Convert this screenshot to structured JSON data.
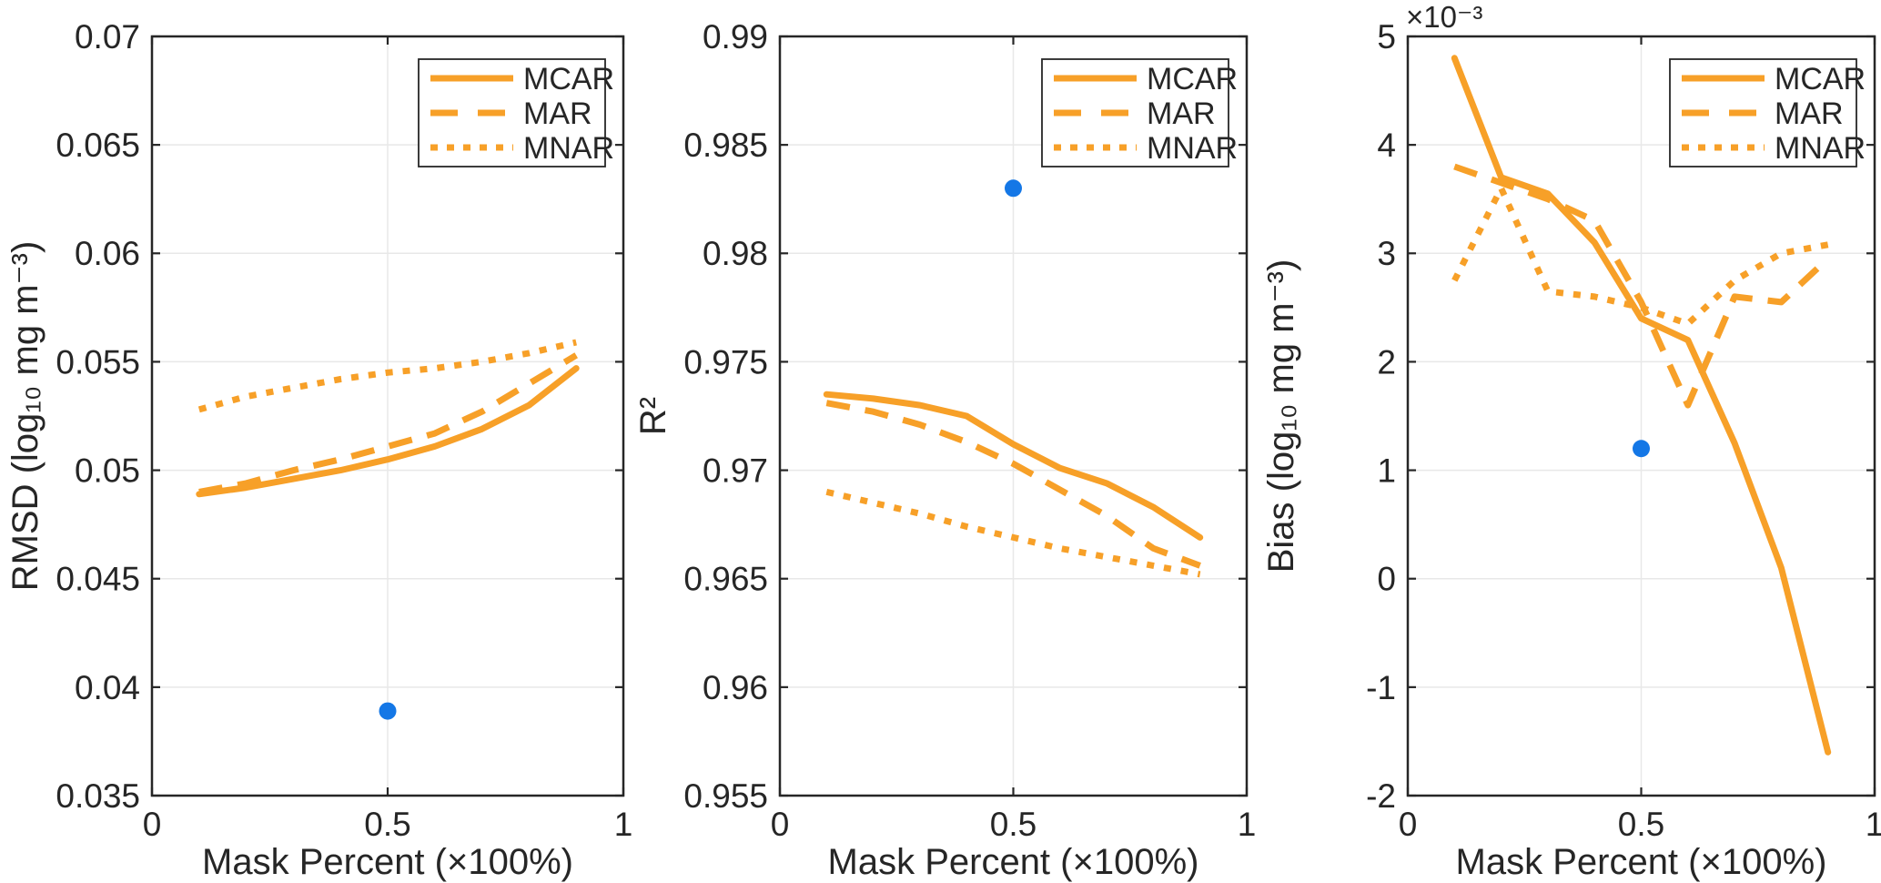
{
  "figure": {
    "background": "#FFFFFF"
  },
  "colors": {
    "series_orange": "#F7A028",
    "point_blue": "#1477E6",
    "grid": "#E8E8E8",
    "axis": "#262626",
    "text": "#262626",
    "legend_border": "#262626",
    "legend_background": "#FFFFFF"
  },
  "legend": {
    "position": "top-right",
    "items": [
      {
        "label": "MCAR",
        "style": "solid"
      },
      {
        "label": "MAR",
        "style": "dashed"
      },
      {
        "label": "MNAR",
        "style": "dotted"
      }
    ]
  },
  "chart_data": [
    {
      "type": "line",
      "title": "",
      "xlabel": "Mask Percent (×100%)",
      "ylabel": "RMSD (log₁₀ mg m⁻³)",
      "y_offset_label": "",
      "xlim": [
        0,
        1
      ],
      "ylim": [
        0.035,
        0.07
      ],
      "xticks": [
        0,
        0.5,
        1
      ],
      "xtick_labels": [
        "0",
        "0.5",
        "1"
      ],
      "yticks": [
        0.035,
        0.04,
        0.045,
        0.05,
        0.055,
        0.06,
        0.065,
        0.07
      ],
      "ytick_labels": [
        "0.035",
        "0.04",
        "0.045",
        "0.05",
        "0.055",
        "0.06",
        "0.065",
        "0.07"
      ],
      "grid": true,
      "legend_position": "top-right",
      "x": [
        0.1,
        0.2,
        0.3,
        0.4,
        0.5,
        0.6,
        0.7,
        0.8,
        0.9
      ],
      "series": [
        {
          "name": "MCAR",
          "style": "solid",
          "values": [
            0.0489,
            0.0492,
            0.0496,
            0.05,
            0.0505,
            0.0511,
            0.0519,
            0.053,
            0.0547
          ]
        },
        {
          "name": "MAR",
          "style": "dashed",
          "values": [
            0.049,
            0.0494,
            0.05,
            0.0505,
            0.0511,
            0.0517,
            0.0527,
            0.054,
            0.0553
          ]
        },
        {
          "name": "MNAR",
          "style": "dotted",
          "values": [
            0.0528,
            0.0534,
            0.0538,
            0.0542,
            0.0545,
            0.0547,
            0.055,
            0.0554,
            0.0559
          ]
        }
      ],
      "point": {
        "x": 0.5,
        "y": 0.0389
      }
    },
    {
      "type": "line",
      "title": "",
      "xlabel": "Mask Percent (×100%)",
      "ylabel": "R²",
      "y_offset_label": "",
      "xlim": [
        0,
        1
      ],
      "ylim": [
        0.955,
        0.99
      ],
      "xticks": [
        0,
        0.5,
        1
      ],
      "xtick_labels": [
        "0",
        "0.5",
        "1"
      ],
      "yticks": [
        0.955,
        0.96,
        0.965,
        0.97,
        0.975,
        0.98,
        0.985,
        0.99
      ],
      "ytick_labels": [
        "0.955",
        "0.96",
        "0.965",
        "0.97",
        "0.975",
        "0.98",
        "0.985",
        "0.99"
      ],
      "grid": true,
      "legend_position": "top-right",
      "x": [
        0.1,
        0.2,
        0.3,
        0.4,
        0.5,
        0.6,
        0.7,
        0.8,
        0.9
      ],
      "series": [
        {
          "name": "MCAR",
          "style": "solid",
          "values": [
            0.9735,
            0.9733,
            0.973,
            0.9725,
            0.9712,
            0.9701,
            0.9694,
            0.9683,
            0.9669
          ]
        },
        {
          "name": "MAR",
          "style": "dashed",
          "values": [
            0.9731,
            0.9727,
            0.9721,
            0.9713,
            0.9703,
            0.9691,
            0.9679,
            0.9664,
            0.9656
          ]
        },
        {
          "name": "MNAR",
          "style": "dotted",
          "values": [
            0.969,
            0.9685,
            0.968,
            0.9674,
            0.9669,
            0.9664,
            0.966,
            0.9656,
            0.9652
          ]
        }
      ],
      "point": {
        "x": 0.5,
        "y": 0.983
      }
    },
    {
      "type": "line",
      "title": "",
      "xlabel": "Mask Percent (×100%)",
      "ylabel": "Bias (log₁₀ mg m⁻³)",
      "y_offset_label": "×10⁻³",
      "xlim": [
        0,
        1
      ],
      "ylim": [
        -2,
        5
      ],
      "xticks": [
        0,
        0.5,
        1
      ],
      "xtick_labels": [
        "0",
        "0.5",
        "1"
      ],
      "yticks": [
        -2,
        -1,
        0,
        1,
        2,
        3,
        4,
        5
      ],
      "ytick_labels": [
        "-2",
        "-1",
        "0",
        "1",
        "2",
        "3",
        "4",
        "5"
      ],
      "grid": true,
      "legend_position": "top-right",
      "x": [
        0.1,
        0.2,
        0.3,
        0.4,
        0.5,
        0.6,
        0.7,
        0.8,
        0.9
      ],
      "series": [
        {
          "name": "MCAR",
          "style": "solid",
          "values": [
            4.8,
            3.7,
            3.55,
            3.1,
            2.4,
            2.2,
            1.25,
            0.1,
            -1.6
          ]
        },
        {
          "name": "MAR",
          "style": "dashed",
          "values": [
            3.8,
            3.65,
            3.5,
            3.3,
            2.55,
            1.6,
            2.6,
            2.55,
            2.95
          ]
        },
        {
          "name": "MNAR",
          "style": "dotted",
          "values": [
            2.75,
            3.6,
            2.65,
            2.6,
            2.5,
            2.35,
            2.75,
            3.0,
            3.08
          ]
        }
      ],
      "point": {
        "x": 0.5,
        "y": 1.2
      }
    }
  ]
}
